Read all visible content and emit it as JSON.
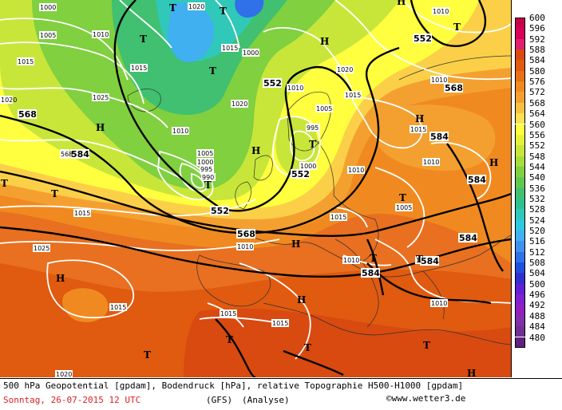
{
  "map": {
    "isobar_labels": [
      "1000",
      "1005",
      "1010",
      "1015",
      "1020",
      "1025",
      "1020",
      "1015",
      "1010",
      "1005",
      "1000",
      "995",
      "990",
      "1015",
      "1010",
      "1005",
      "1000",
      "995",
      "1010",
      "1015",
      "1010",
      "1005",
      "1020",
      "1015",
      "1010",
      "1015",
      "1025",
      "1020",
      "1015",
      "1015",
      "1010",
      "1010",
      "1015",
      "1015",
      "1010",
      "1020",
      "1010",
      "1000",
      "1015"
    ],
    "geopotential_labels": [
      "552",
      "568",
      "568",
      "552",
      "552",
      "552",
      "568",
      "584",
      "584",
      "584",
      "584",
      "584",
      "584",
      "568"
    ],
    "pressure_centers": [
      "T",
      "T",
      "T",
      "T",
      "H",
      "H",
      "H",
      "T",
      "T",
      "H",
      "T",
      "H",
      "H",
      "T",
      "T",
      "T",
      "T",
      "H",
      "T",
      "H",
      "T",
      "T",
      "H",
      "T",
      "H",
      "T"
    ]
  },
  "legend": {
    "values": [
      "600",
      "596",
      "592",
      "588",
      "584",
      "580",
      "576",
      "572",
      "568",
      "564",
      "560",
      "556",
      "552",
      "548",
      "544",
      "540",
      "536",
      "532",
      "528",
      "524",
      "520",
      "516",
      "512",
      "508",
      "504",
      "500",
      "496",
      "492",
      "488",
      "484",
      "480"
    ],
    "colors": [
      "#c8004a",
      "#d8005a",
      "#e0206e",
      "#d84a10",
      "#e05a10",
      "#e87018",
      "#f08a20",
      "#f4a030",
      "#f8c040",
      "#fde050",
      "#ffff40",
      "#e6f23a",
      "#c8e63a",
      "#a8dc3a",
      "#80d040",
      "#60c850",
      "#40c070",
      "#30c090",
      "#30c8b8",
      "#30c8e0",
      "#40b0f0",
      "#4090f0",
      "#3070e8",
      "#2050e0",
      "#3030d0",
      "#6020d8",
      "#8020d0",
      "#9020c0",
      "#8030a8",
      "#703090",
      "#602080"
    ]
  },
  "footer": {
    "line1": "500 hPa Geopotential [gpdam], Bodendruck [hPa], relative Topographie H500-H1000 [gpdam]",
    "date": "Sonntag, 26-07-2015  12 UTC",
    "model": "(GFS)",
    "run": "(Analyse)",
    "copyright": "©www.wetter3.de"
  }
}
